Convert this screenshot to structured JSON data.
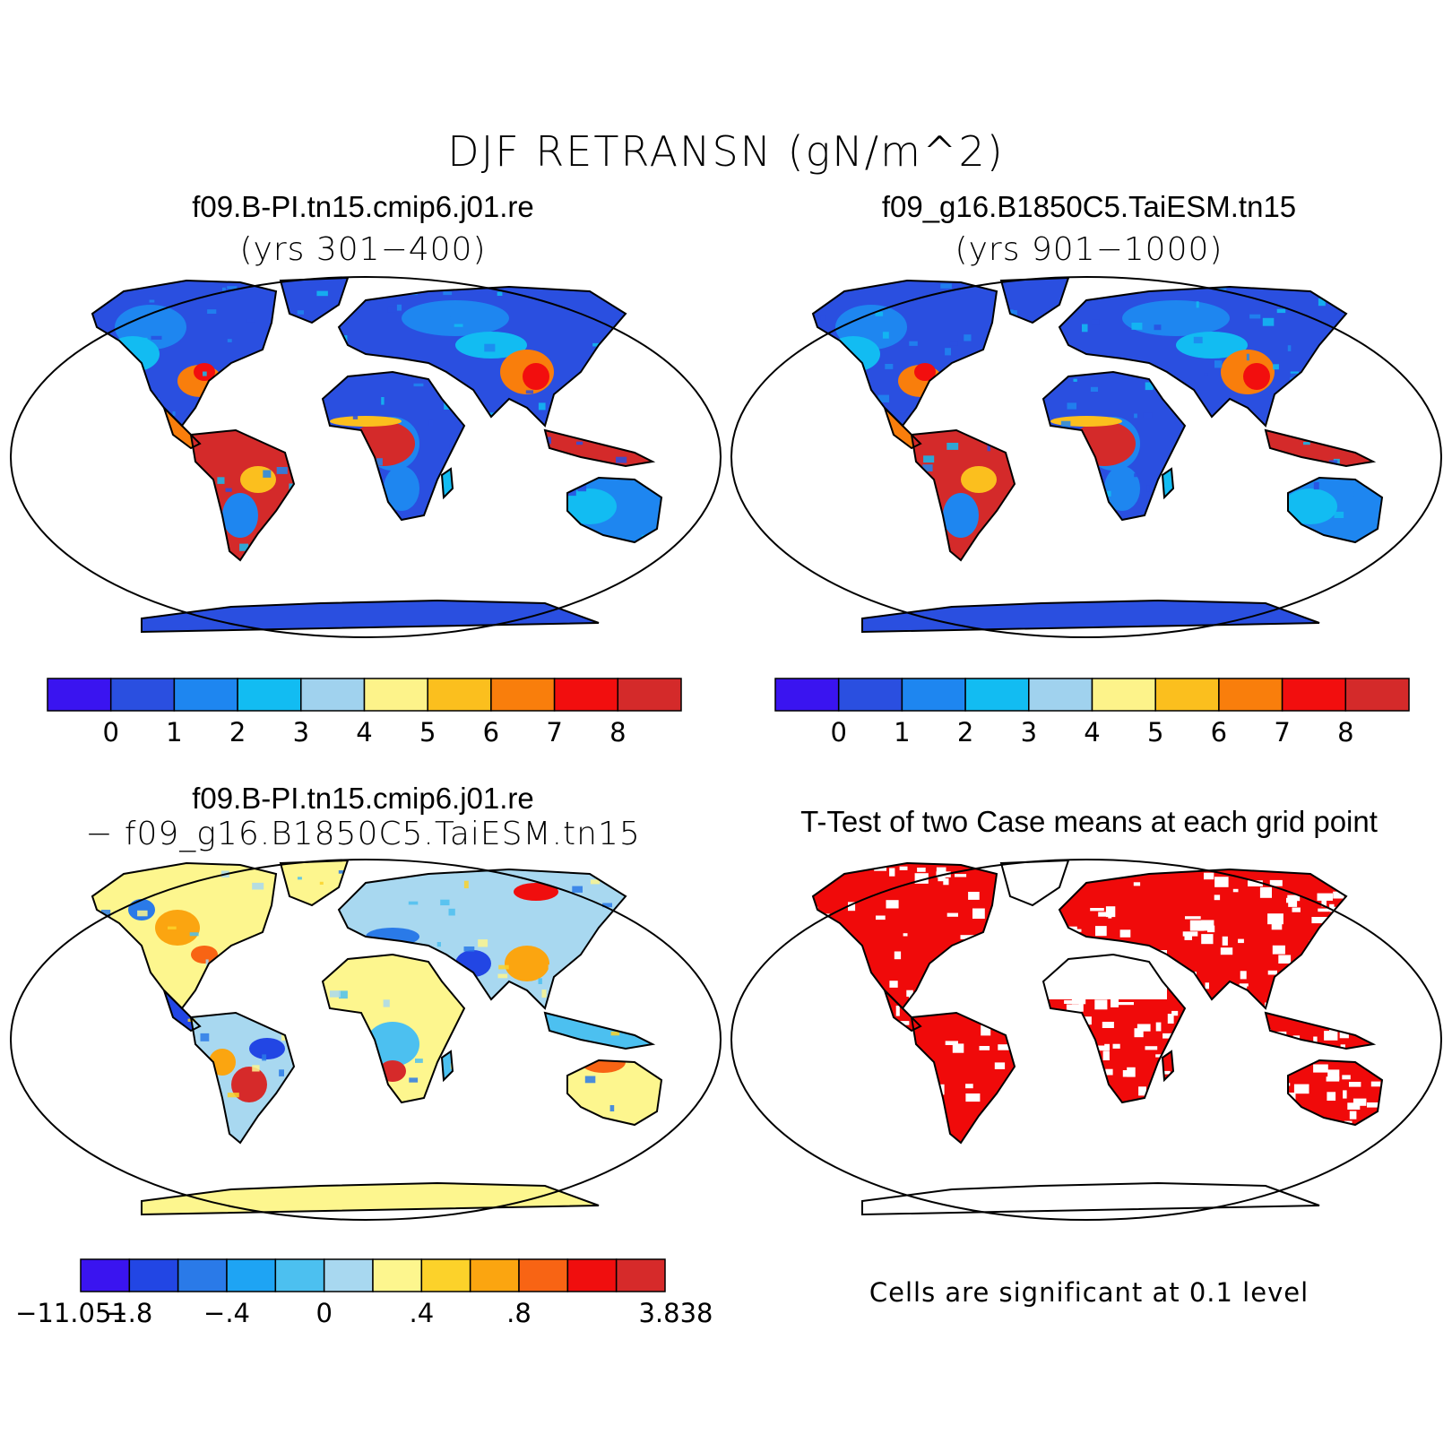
{
  "figure": {
    "title": "DJF RETRANSN (gN/m^2)"
  },
  "panels": [
    {
      "id": "case1",
      "title": "f09.B-PI.tn15.cmip6.j01.re",
      "subtitle": "(yrs 301−400)",
      "colorbar": {
        "colors": [
          "#3a14f0",
          "#2a4fe0",
          "#1e86f0",
          "#12bcf2",
          "#a0d2ee",
          "#fdf38a",
          "#fbbf1e",
          "#f97e0c",
          "#f20e0e",
          "#d42a2a"
        ],
        "tick_labels": [
          "0",
          "1",
          "2",
          "3",
          "4",
          "5",
          "6",
          "7",
          "8"
        ]
      }
    },
    {
      "id": "case2",
      "title": "f09_g16.B1850C5.TaiESM.tn15",
      "subtitle": "(yrs 901−1000)",
      "colorbar": {
        "colors": [
          "#3a14f0",
          "#2a4fe0",
          "#1e86f0",
          "#12bcf2",
          "#a0d2ee",
          "#fdf38a",
          "#fbbf1e",
          "#f97e0c",
          "#f20e0e",
          "#d42a2a"
        ],
        "tick_labels": [
          "0",
          "1",
          "2",
          "3",
          "4",
          "5",
          "6",
          "7",
          "8"
        ]
      }
    },
    {
      "id": "difference",
      "title": "f09.B-PI.tn15.cmip6.j01.re",
      "subtitle": "− f09_g16.B1850C5.TaiESM.tn15",
      "colorbar": {
        "colors": [
          "#3a14f0",
          "#2246e4",
          "#2a7ae8",
          "#1ea4f4",
          "#4cc0f0",
          "#a8d8f0",
          "#fdf68e",
          "#fcd22a",
          "#fba510",
          "#f86414",
          "#f00e0e",
          "#d62a2a"
        ],
        "tick_labels": [
          "−11.051",
          "−.8",
          "",
          "−.4",
          "",
          "0",
          "",
          ".4",
          "",
          ".8",
          "",
          "3.838"
        ]
      }
    },
    {
      "id": "ttest",
      "title": "T-Test of two Case means at each grid point",
      "note": "Cells are significant at 0.1 level",
      "significant_color": "#f00a0a"
    }
  ]
}
